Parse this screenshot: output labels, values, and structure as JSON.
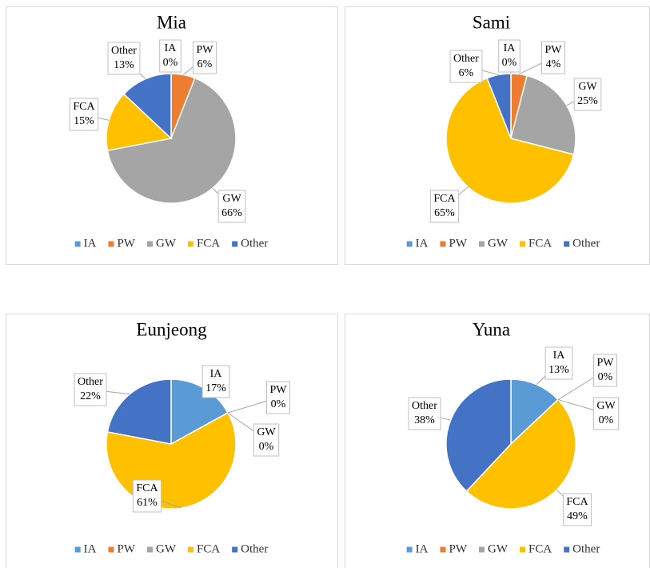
{
  "chart_data": [
    {
      "type": "pie",
      "title": "Mia",
      "categories": [
        "IA",
        "PW",
        "GW",
        "FCA",
        "Other"
      ],
      "values": [
        0,
        6,
        66,
        15,
        13
      ],
      "value_labels": [
        "0%",
        "6%",
        "66%",
        "15%",
        "13%"
      ],
      "colors": [
        "#5b9bd5",
        "#ed7d31",
        "#a5a5a5",
        "#ffc000",
        "#4472c4"
      ],
      "legend": "bottom"
    },
    {
      "type": "pie",
      "title": "Sami",
      "categories": [
        "IA",
        "PW",
        "GW",
        "FCA",
        "Other"
      ],
      "values": [
        0,
        4,
        25,
        65,
        6
      ],
      "value_labels": [
        "0%",
        "4%",
        "25%",
        "65%",
        "6%"
      ],
      "colors": [
        "#5b9bd5",
        "#ed7d31",
        "#a5a5a5",
        "#ffc000",
        "#4472c4"
      ],
      "legend": "bottom"
    },
    {
      "type": "pie",
      "title": "Eunjeong",
      "categories": [
        "IA",
        "PW",
        "GW",
        "FCA",
        "Other"
      ],
      "values": [
        17,
        0,
        0,
        61,
        22
      ],
      "value_labels": [
        "17%",
        "0%",
        "0%",
        "61%",
        "22%"
      ],
      "colors": [
        "#5b9bd5",
        "#ed7d31",
        "#a5a5a5",
        "#ffc000",
        "#4472c4"
      ],
      "legend": "bottom"
    },
    {
      "type": "pie",
      "title": "Yuna",
      "categories": [
        "IA",
        "PW",
        "GW",
        "FCA",
        "Other"
      ],
      "values": [
        13,
        0,
        0,
        49,
        38
      ],
      "value_labels": [
        "13%",
        "0%",
        "0%",
        "49%",
        "38%"
      ],
      "colors": [
        "#5b9bd5",
        "#ed7d31",
        "#a5a5a5",
        "#ffc000",
        "#4472c4"
      ],
      "legend": "bottom"
    }
  ]
}
